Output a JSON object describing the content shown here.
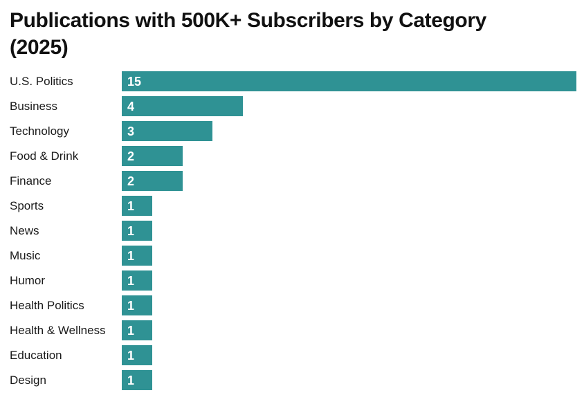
{
  "title": "Publications with 500K+ Subscribers by Category\n(2025)",
  "colors": {
    "bar": "#2f9294",
    "label_text": "#1a1a1a",
    "value_text": "#ffffff",
    "title_text": "#111111",
    "background": "#ffffff"
  },
  "chart_data": {
    "type": "bar",
    "orientation": "horizontal",
    "title": "Publications with 500K+ Subscribers by Category (2025)",
    "categories": [
      "U.S. Politics",
      "Business",
      "Technology",
      "Food & Drink",
      "Finance",
      "Sports",
      "News",
      "Music",
      "Humor",
      "Health Politics",
      "Health & Wellness",
      "Education",
      "Design"
    ],
    "values": [
      15,
      4,
      3,
      2,
      2,
      1,
      1,
      1,
      1,
      1,
      1,
      1,
      1
    ],
    "xlabel": "",
    "ylabel": "",
    "xlim": [
      0,
      15
    ],
    "grid": false,
    "legend": false,
    "value_labels": "inside-bar-start"
  }
}
